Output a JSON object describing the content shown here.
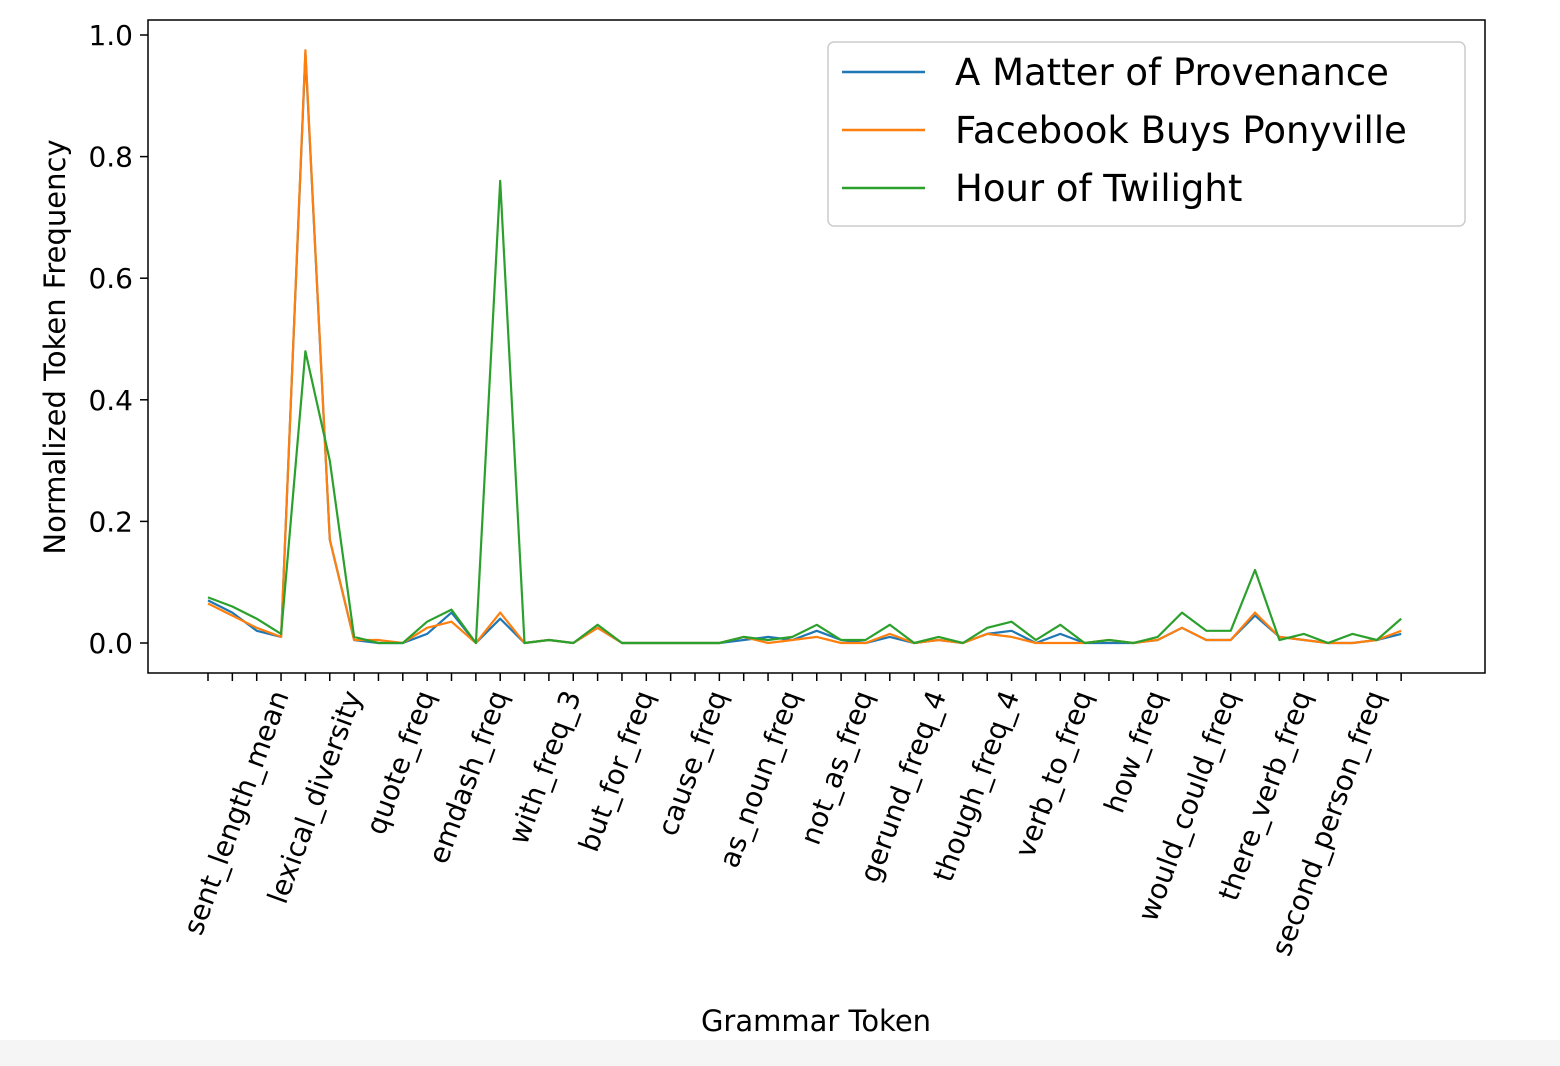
{
  "chart_data": {
    "type": "line",
    "xlabel": "Grammar Token",
    "ylabel": "Normalized Token Frequency",
    "ylim": [
      -0.05,
      1.02
    ],
    "yticks": [
      0.0,
      0.2,
      0.4,
      0.6,
      0.8,
      1.0
    ],
    "ytick_labels": [
      "0.0",
      "0.2",
      "0.4",
      "0.6",
      "0.8",
      "1.0"
    ],
    "grid": false,
    "legend_position": "top-right",
    "xtick_labels": [
      "sent_length_mean",
      "lexical_diversity",
      "quote_freq",
      "emdash_freq",
      "with_freq_3",
      "but_for_freq",
      "cause_freq",
      "as_noun_freq",
      "not_as_freq",
      "gerund_freq_4",
      "though_freq_4",
      "verb_to_freq",
      "how_freq",
      "would_could_freq",
      "there_verb_freq",
      "second_person_freq"
    ],
    "xtick_indices": [
      3,
      6,
      9,
      12,
      15,
      18,
      21,
      24,
      27,
      30,
      33,
      36,
      39,
      42,
      45,
      48
    ],
    "x_count": 50,
    "series": [
      {
        "name": "A Matter of Provenance",
        "color": "#1f77b4",
        "values": [
          0.07,
          0.05,
          0.02,
          0.01,
          0.97,
          0.17,
          0.005,
          0.0,
          0.0,
          0.015,
          0.05,
          0.0,
          0.04,
          0.0,
          0.005,
          0.0,
          0.025,
          0.0,
          0.0,
          0.0,
          0.0,
          0.0,
          0.005,
          0.01,
          0.005,
          0.02,
          0.005,
          0.0,
          0.01,
          0.0,
          0.005,
          0.0,
          0.015,
          0.02,
          0.0,
          0.015,
          0.0,
          0.0,
          0.0,
          0.005,
          0.025,
          0.005,
          0.005,
          0.045,
          0.01,
          0.005,
          0.0,
          0.0,
          0.005,
          0.015
        ]
      },
      {
        "name": "Facebook Buys Ponyville",
        "color": "#ff7f0e",
        "values": [
          0.065,
          0.045,
          0.025,
          0.01,
          0.975,
          0.17,
          0.005,
          0.005,
          0.0,
          0.025,
          0.035,
          0.0,
          0.05,
          0.0,
          0.005,
          0.0,
          0.025,
          0.0,
          0.0,
          0.0,
          0.0,
          0.0,
          0.01,
          0.0,
          0.005,
          0.01,
          0.0,
          0.0,
          0.015,
          0.0,
          0.005,
          0.0,
          0.015,
          0.01,
          0.0,
          0.0,
          0.0,
          0.005,
          0.0,
          0.005,
          0.025,
          0.005,
          0.005,
          0.05,
          0.01,
          0.005,
          0.0,
          0.0,
          0.005,
          0.02
        ]
      },
      {
        "name": "Hour of Twilight",
        "color": "#2ca02c",
        "values": [
          0.075,
          0.06,
          0.04,
          0.015,
          0.48,
          0.3,
          0.01,
          0.0,
          0.0,
          0.035,
          0.055,
          0.0,
          0.76,
          0.0,
          0.005,
          0.0,
          0.03,
          0.0,
          0.0,
          0.0,
          0.0,
          0.0,
          0.01,
          0.005,
          0.01,
          0.03,
          0.005,
          0.005,
          0.03,
          0.0,
          0.01,
          0.0,
          0.025,
          0.035,
          0.005,
          0.03,
          0.0,
          0.005,
          0.0,
          0.01,
          0.05,
          0.02,
          0.02,
          0.12,
          0.005,
          0.015,
          0.0,
          0.015,
          0.005,
          0.04
        ]
      }
    ]
  }
}
